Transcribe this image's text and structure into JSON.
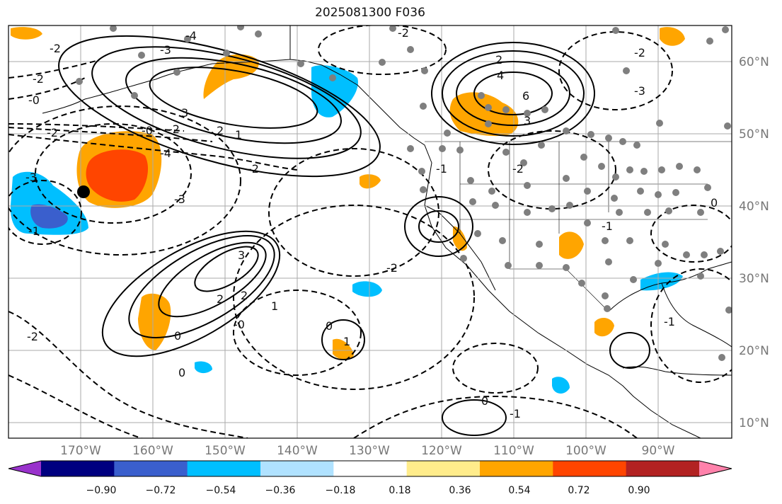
{
  "title": "2025081300 F036",
  "lat_ticks": [
    "60°N",
    "50°N",
    "40°N",
    "30°N",
    "20°N",
    "10°N"
  ],
  "lon_ticks": [
    "170°W",
    "160°W",
    "150°W",
    "140°W",
    "130°W",
    "120°W",
    "110°W",
    "100°W",
    "90°W"
  ],
  "colorbar": {
    "tick_labels": [
      "−0.90",
      "−0.72",
      "−0.54",
      "−0.36",
      "−0.18",
      "0.18",
      "0.36",
      "0.54",
      "0.72",
      "0.90"
    ],
    "colors": [
      "#9932cc",
      "#000080",
      "#3a5fcd",
      "#00bfff",
      "#b0e2ff",
      "#ffffff",
      "#ffec8b",
      "#ffa500",
      "#ff4500",
      "#b22222",
      "#ff82ab"
    ]
  },
  "contour_labels": [
    {
      "text": "-4"
    },
    {
      "text": "-3"
    },
    {
      "text": "-2"
    },
    {
      "text": "-2"
    },
    {
      "text": "-0"
    },
    {
      "text": "-2"
    },
    {
      "text": "3"
    },
    {
      "text": "2"
    },
    {
      "text": "1"
    },
    {
      "text": "-0"
    },
    {
      "text": "-2"
    },
    {
      "text": "-4"
    },
    {
      "text": "-3"
    },
    {
      "text": "-3"
    },
    {
      "text": "-1"
    },
    {
      "text": "3"
    },
    {
      "text": "2"
    },
    {
      "text": "2"
    },
    {
      "text": "1"
    },
    {
      "text": "-2"
    },
    {
      "text": "-2"
    },
    {
      "text": "-2"
    },
    {
      "text": "0"
    },
    {
      "text": "0"
    },
    {
      "text": "-0"
    },
    {
      "text": "4"
    },
    {
      "text": "6"
    },
    {
      "text": "3"
    },
    {
      "text": "2"
    },
    {
      "text": "-1"
    },
    {
      "text": "-2"
    },
    {
      "text": "0"
    },
    {
      "text": "-1"
    },
    {
      "text": "-2"
    },
    {
      "text": "0"
    },
    {
      "text": "-1"
    },
    {
      "text": "1"
    },
    {
      "text": "-3"
    },
    {
      "text": "-2"
    },
    {
      "text": "-1"
    },
    {
      "text": "0"
    }
  ]
}
